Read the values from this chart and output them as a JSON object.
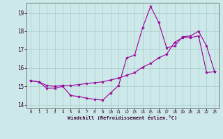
{
  "background_color": "#cce8e8",
  "grid_color": "#aacccc",
  "line_color": "#990099",
  "xlim": [
    -0.5,
    23.5
  ],
  "ylim": [
    13.8,
    19.55
  ],
  "yticks": [
    14,
    15,
    16,
    17,
    18,
    19
  ],
  "xticks": [
    0,
    1,
    2,
    3,
    4,
    5,
    6,
    7,
    8,
    9,
    10,
    11,
    12,
    13,
    14,
    15,
    16,
    17,
    18,
    19,
    20,
    21,
    22,
    23
  ],
  "xlabel": "Windchill (Refroidissement éolien,°C)",
  "series1_x": [
    0,
    1,
    2,
    3,
    4,
    5,
    6,
    7,
    8,
    9,
    10,
    11,
    12,
    13,
    14,
    15,
    16,
    17,
    18,
    19,
    20,
    21,
    22,
    23
  ],
  "series1_y": [
    15.3,
    15.25,
    14.9,
    14.9,
    15.0,
    14.5,
    14.45,
    14.35,
    14.3,
    14.25,
    14.65,
    15.05,
    16.55,
    16.7,
    18.2,
    19.35,
    18.5,
    17.1,
    17.2,
    17.7,
    17.75,
    18.0,
    17.2,
    15.8
  ],
  "series2_x": [
    0,
    1,
    2,
    3,
    4,
    5,
    6,
    7,
    8,
    9,
    10,
    11,
    12,
    13,
    14,
    15,
    16,
    17,
    18,
    19,
    20,
    21,
    22,
    23
  ],
  "series2_y": [
    15.3,
    15.25,
    15.05,
    15.0,
    15.05,
    15.05,
    15.1,
    15.15,
    15.2,
    15.25,
    15.35,
    15.45,
    15.6,
    15.75,
    16.05,
    16.25,
    16.55,
    16.75,
    17.4,
    17.65,
    17.65,
    17.75,
    15.75,
    15.8
  ]
}
